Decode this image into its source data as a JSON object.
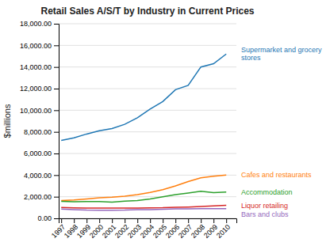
{
  "chart_data": {
    "type": "line",
    "title": "Retail Sales A/S/T by Industry in Current Prices",
    "ylabel": "$millions",
    "x": [
      1997,
      1998,
      1999,
      2000,
      2001,
      2002,
      2003,
      2004,
      2005,
      2006,
      2007,
      2008,
      2009,
      2010
    ],
    "xlim": [
      1996.8,
      2010.8
    ],
    "xticks": [
      1997,
      1998,
      1999,
      2000,
      2001,
      2002,
      2003,
      2004,
      2005,
      2006,
      2007,
      2008,
      2009,
      2010
    ],
    "ylim": [
      0,
      18000
    ],
    "yticks": [
      {
        "value": 0,
        "label": "0.00"
      },
      {
        "value": 2000,
        "label": "2,000.00"
      },
      {
        "value": 4000,
        "label": "4,000.00"
      },
      {
        "value": 6000,
        "label": "6,000.00"
      },
      {
        "value": 8000,
        "label": "8,000.00"
      },
      {
        "value": 10000,
        "label": "10,000.00"
      },
      {
        "value": 12000,
        "label": "12,000.00"
      },
      {
        "value": 14000,
        "label": "14,000.00"
      },
      {
        "value": 16000,
        "label": "16,000.00"
      },
      {
        "value": 18000,
        "label": "18,000.00"
      }
    ],
    "grid": true,
    "series": [
      {
        "name": "Supermarket and grocery\nstores",
        "values": [
          7200,
          7450,
          7800,
          8100,
          8300,
          8700,
          9300,
          10100,
          10800,
          11900,
          12300,
          14000,
          14300,
          15200
        ]
      },
      {
        "name": "Cafes and restaurants",
        "values": [
          1650,
          1700,
          1800,
          1900,
          1950,
          2050,
          2200,
          2400,
          2650,
          3000,
          3400,
          3750,
          3900,
          4000
        ]
      },
      {
        "name": "Accommodation",
        "values": [
          1580,
          1530,
          1550,
          1560,
          1500,
          1600,
          1650,
          1800,
          2000,
          2200,
          2350,
          2500,
          2380,
          2430
        ]
      },
      {
        "name": "Liquor retailing",
        "values": [
          1000,
          970,
          960,
          960,
          960,
          960,
          960,
          970,
          980,
          1020,
          1050,
          1100,
          1150,
          1200
        ]
      },
      {
        "name": "Bars and clubs",
        "values": [
          860,
          810,
          760,
          750,
          750,
          760,
          800,
          810,
          850,
          870,
          880,
          890,
          895,
          900
        ]
      }
    ]
  }
}
